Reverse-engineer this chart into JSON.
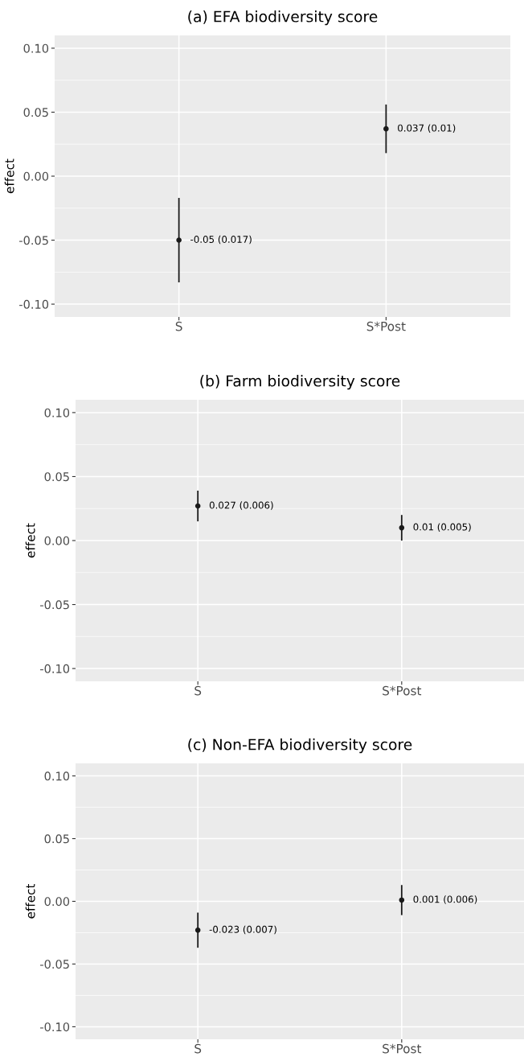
{
  "chart_data": [
    {
      "type": "scatter",
      "title": "(a) EFA biodiversity score",
      "ylabel": "effect",
      "categories": [
        "S",
        "S*Post"
      ],
      "values": [
        -0.05,
        0.037
      ],
      "errors": [
        [
          -0.083,
          -0.017
        ],
        [
          0.018,
          0.056
        ]
      ],
      "value_labels": [
        "-0.05 (0.017)",
        "0.037 (0.01)"
      ],
      "color": "#1a1a1a",
      "marker": "circle",
      "ylim": [
        -0.11,
        0.11
      ],
      "yticks": [
        {
          "value": -0.1,
          "label": "-0.10"
        },
        {
          "value": -0.05,
          "label": "-0.05"
        },
        {
          "value": 0,
          "label": "0.00"
        },
        {
          "value": 0.05,
          "label": "0.05"
        },
        {
          "value": 0.1,
          "label": "0.10"
        }
      ],
      "grid": true
    },
    {
      "type": "scatter",
      "title": "(b) Farm biodiversity score",
      "ylabel": "effect",
      "categories": [
        "S",
        "S*Post"
      ],
      "values": [
        0.027,
        0.01
      ],
      "errors": [
        [
          0.015,
          0.039
        ],
        [
          0.0,
          0.02
        ]
      ],
      "value_labels": [
        "0.027 (0.006)",
        "0.01 (0.005)"
      ],
      "color": "#1a1a1a",
      "marker": "circle",
      "ylim": [
        -0.11,
        0.11
      ],
      "yticks": [
        {
          "value": -0.1,
          "label": "-0.10"
        },
        {
          "value": -0.05,
          "label": "-0.05"
        },
        {
          "value": 0,
          "label": "0.00"
        },
        {
          "value": 0.05,
          "label": "0.05"
        },
        {
          "value": 0.1,
          "label": "0.10"
        }
      ],
      "grid": true
    },
    {
      "type": "scatter",
      "title": "(c) Non-EFA biodiversity score",
      "ylabel": "effect",
      "categories": [
        "S",
        "S*Post"
      ],
      "values": [
        -0.023,
        0.001
      ],
      "errors": [
        [
          -0.037,
          -0.009
        ],
        [
          -0.011,
          0.013
        ]
      ],
      "value_labels": [
        "-0.023 (0.007)",
        "0.001 (0.006)"
      ],
      "color": "#1a1a1a",
      "marker": "circle",
      "ylim": [
        -0.11,
        0.11
      ],
      "yticks": [
        {
          "value": -0.1,
          "label": "-0.10"
        },
        {
          "value": -0.05,
          "label": "-0.05"
        },
        {
          "value": 0,
          "label": "0.00"
        },
        {
          "value": 0.05,
          "label": "0.05"
        },
        {
          "value": 0.1,
          "label": "0.10"
        }
      ],
      "grid": true
    }
  ]
}
